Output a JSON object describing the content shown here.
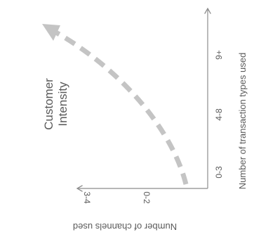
{
  "title": "Customer\nIntensity",
  "title_lines": [
    "Customer",
    "Intensity"
  ],
  "x_axis": {
    "label": "Number of transaction types used",
    "ticks": [
      "0-3",
      "4-8",
      "9+"
    ]
  },
  "y_axis": {
    "label": "Number of channels used",
    "ticks": [
      "0-2",
      "3-4"
    ]
  },
  "colors": {
    "axis": "#8c8c8c",
    "text": "#5a5a5a",
    "arrow": "#c4c4c4"
  }
}
